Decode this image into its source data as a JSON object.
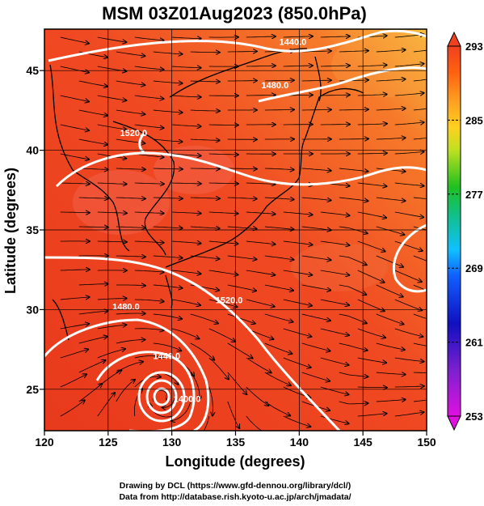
{
  "title": "MSM 03Z01Aug2023 (850.0hPa)",
  "x_axis": {
    "label": "Longitude (degrees)",
    "ticks": [
      "120",
      "125",
      "130",
      "135",
      "140",
      "145",
      "150"
    ],
    "range": [
      120,
      150
    ]
  },
  "y_axis": {
    "label": "Latitude  (degrees)",
    "ticks": [
      "25",
      "30",
      "35",
      "40",
      "45"
    ],
    "range": [
      22.4,
      47.6
    ]
  },
  "colorbar": {
    "ticks": [
      "293",
      "285",
      "277",
      "269",
      "261",
      "253"
    ],
    "range": [
      253,
      293
    ],
    "colors": [
      "#e010e0",
      "#1010c0",
      "#10a0ff",
      "#10c080",
      "#20c020",
      "#c0e020",
      "#ffa020",
      "#ff4010",
      "#f04020"
    ]
  },
  "contours": [
    {
      "label": "1440.0",
      "lon": 139.5,
      "lat": 46.6
    },
    {
      "label": "1480.0",
      "lon": 138.1,
      "lat": 43.9
    },
    {
      "label": "1520.0",
      "lon": 127.0,
      "lat": 40.9
    },
    {
      "label": "1520.0",
      "lon": 134.5,
      "lat": 30.4
    },
    {
      "label": "1480.0",
      "lon": 126.4,
      "lat": 30.0
    },
    {
      "label": "1440.0",
      "lon": 129.6,
      "lat": 26.9
    },
    {
      "label": "1400.0",
      "lon": 131.2,
      "lat": 24.2
    }
  ],
  "credits": [
    "Drawing by DCL (https://www.gfd-dennou.org/library/dcl/)",
    "Data from http://database.rish.kyoto-u.ac.jp/arch/jmadata/"
  ],
  "colors": {
    "background": "#ffffff",
    "field": "#f04a22",
    "contour": "#ffffff",
    "coast": "#000000"
  }
}
